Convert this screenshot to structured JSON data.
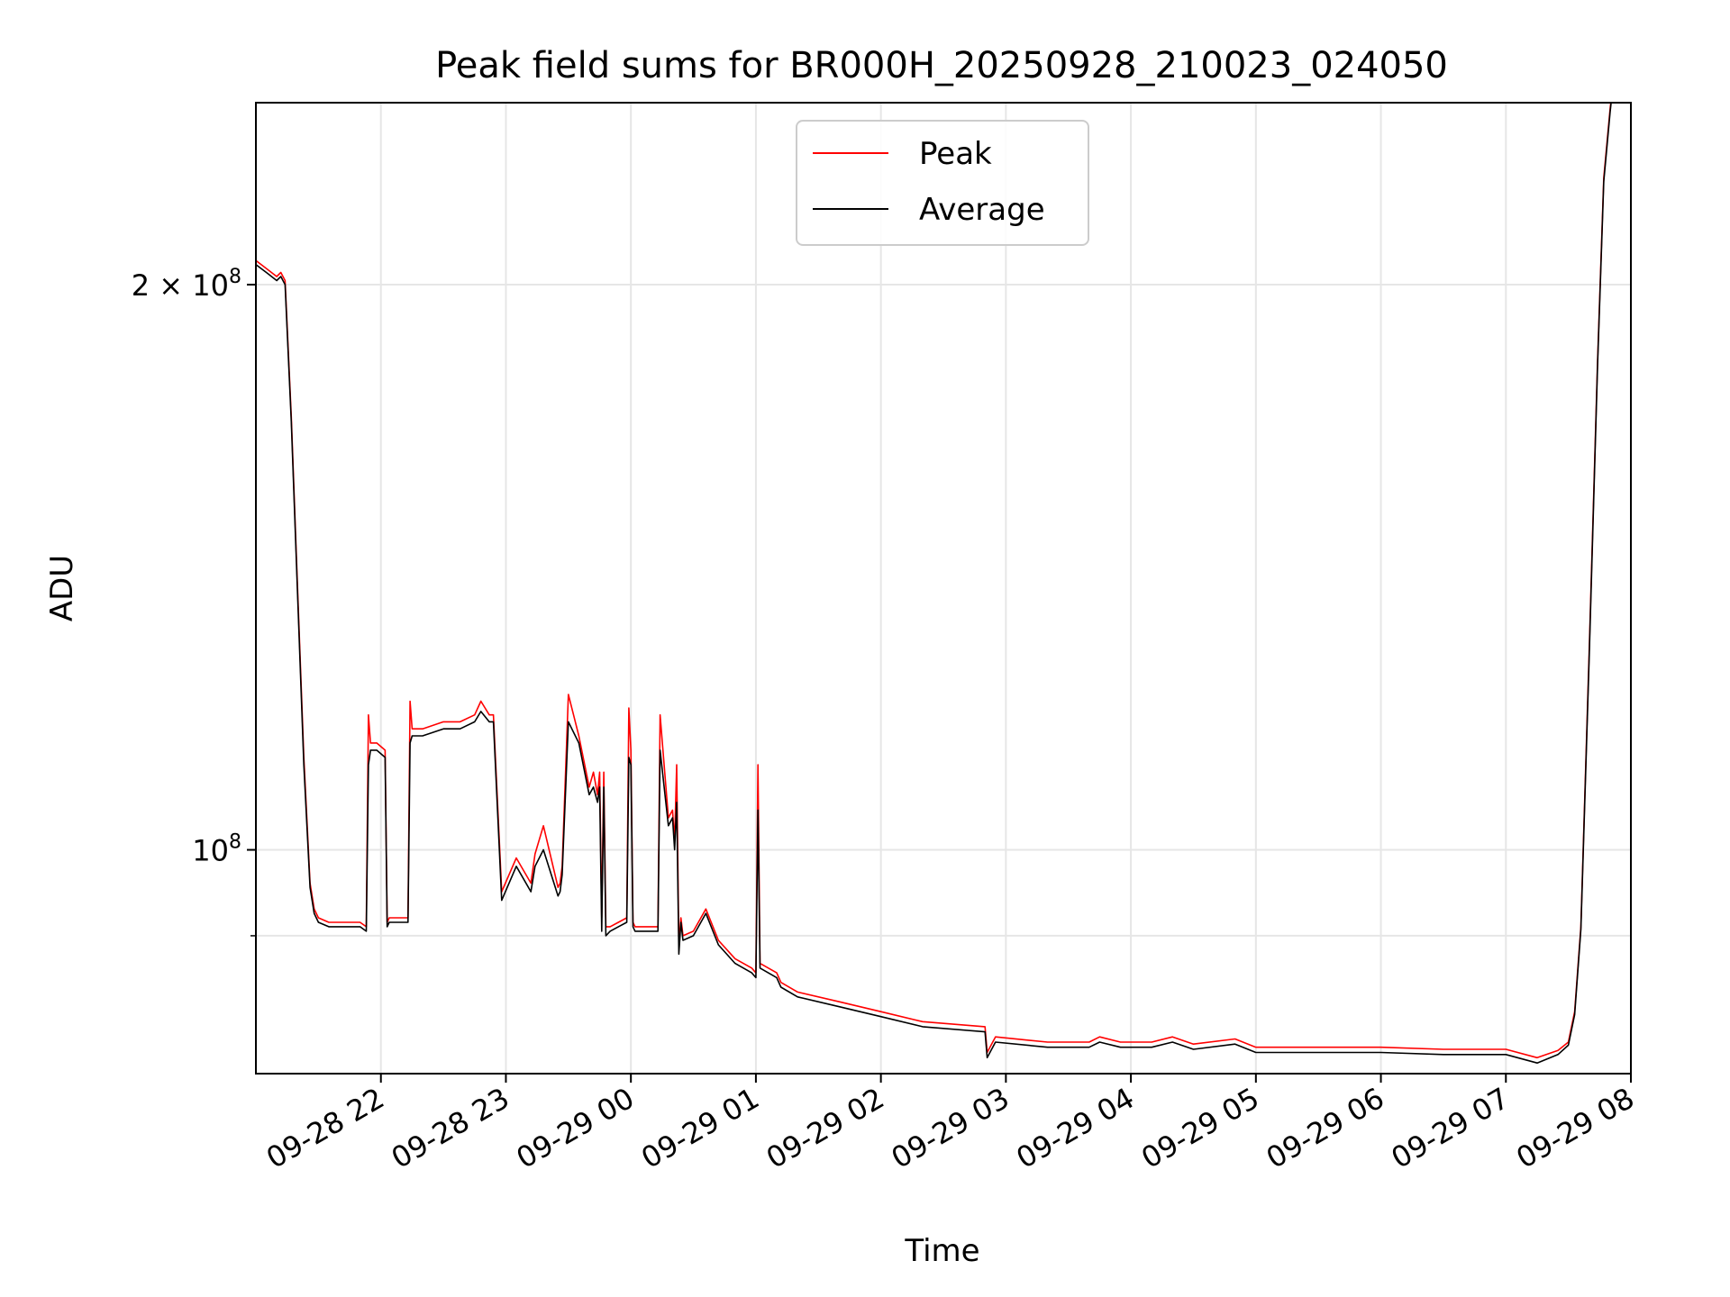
{
  "chart_data": {
    "type": "line",
    "title": "Peak field sums for BR000H_20250928_210023_024050",
    "xlabel": "Time",
    "ylabel": "ADU",
    "y_scale": "log",
    "ylim": [
      76000000,
      250000000
    ],
    "xlim": [
      "2025-09-28 21:00",
      "2025-09-29 08:00"
    ],
    "x_ticks": [
      "09-28 22",
      "09-28 23",
      "09-29 00",
      "09-29 01",
      "09-29 02",
      "09-29 03",
      "09-29 04",
      "09-29 05",
      "09-29 06",
      "09-29 07",
      "09-29 08"
    ],
    "y_ticks": [
      {
        "label_base": "10",
        "label_exp": "8",
        "value": 100000000
      },
      {
        "label_base": "2 × 10",
        "label_exp": "8",
        "value": 200000000
      }
    ],
    "grid": true,
    "legend": {
      "placement": "top-center",
      "entries": [
        "Peak",
        "Average"
      ]
    },
    "colors": {
      "Peak": "#ff0000",
      "Average": "#000000"
    },
    "series": [
      {
        "name": "Peak",
        "x": [
          "2025-09-28 21:00",
          "2025-09-28 21:05",
          "2025-09-28 21:10",
          "2025-09-28 21:12",
          "2025-09-28 21:14",
          "2025-09-28 21:17",
          "2025-09-28 21:20",
          "2025-09-28 21:23",
          "2025-09-28 21:26",
          "2025-09-28 21:28",
          "2025-09-28 21:30",
          "2025-09-28 21:35",
          "2025-09-28 21:40",
          "2025-09-28 21:50",
          "2025-09-28 21:53",
          "2025-09-28 21:54",
          "2025-09-28 21:55",
          "2025-09-28 21:58",
          "2025-09-28 22:02",
          "2025-09-28 22:03",
          "2025-09-28 22:04",
          "2025-09-28 22:10",
          "2025-09-28 22:13",
          "2025-09-28 22:14",
          "2025-09-28 22:15",
          "2025-09-28 22:20",
          "2025-09-28 22:30",
          "2025-09-28 22:38",
          "2025-09-28 22:45",
          "2025-09-28 22:48",
          "2025-09-28 22:52",
          "2025-09-28 22:54",
          "2025-09-28 22:58",
          "2025-09-28 23:05",
          "2025-09-28 23:12",
          "2025-09-28 23:14",
          "2025-09-28 23:18",
          "2025-09-28 23:25",
          "2025-09-28 23:26",
          "2025-09-28 23:27",
          "2025-09-28 23:30",
          "2025-09-28 23:35",
          "2025-09-28 23:40",
          "2025-09-28 23:42",
          "2025-09-28 23:44",
          "2025-09-28 23:45",
          "2025-09-28 23:46",
          "2025-09-28 23:47",
          "2025-09-28 23:48",
          "2025-09-28 23:50",
          "2025-09-28 23:54",
          "2025-09-28 23:58",
          "2025-09-28 23:59",
          "2025-09-29 00:00",
          "2025-09-29 00:01",
          "2025-09-29 00:02",
          "2025-09-29 00:03",
          "2025-09-29 00:06",
          "2025-09-29 00:10",
          "2025-09-29 00:13",
          "2025-09-29 00:14",
          "2025-09-29 00:18",
          "2025-09-29 00:20",
          "2025-09-29 00:21",
          "2025-09-29 00:22",
          "2025-09-29 00:23",
          "2025-09-29 00:24",
          "2025-09-29 00:25",
          "2025-09-29 00:30",
          "2025-09-29 00:36",
          "2025-09-29 00:42",
          "2025-09-29 00:50",
          "2025-09-29 00:58",
          "2025-09-29 01:00",
          "2025-09-29 01:01",
          "2025-09-29 01:02",
          "2025-09-29 01:10",
          "2025-09-29 01:12",
          "2025-09-29 01:20",
          "2025-09-29 01:40",
          "2025-09-29 02:00",
          "2025-09-29 02:20",
          "2025-09-29 02:50",
          "2025-09-29 02:51",
          "2025-09-29 02:55",
          "2025-09-29 03:20",
          "2025-09-29 03:40",
          "2025-09-29 03:45",
          "2025-09-29 03:55",
          "2025-09-29 04:10",
          "2025-09-29 04:20",
          "2025-09-29 04:30",
          "2025-09-29 04:50",
          "2025-09-29 05:00",
          "2025-09-29 05:30",
          "2025-09-29 06:00",
          "2025-09-29 06:30",
          "2025-09-29 07:00",
          "2025-09-29 07:15",
          "2025-09-29 07:25",
          "2025-09-29 07:30",
          "2025-09-29 07:33",
          "2025-09-29 07:36",
          "2025-09-29 07:40",
          "2025-09-29 07:44",
          "2025-09-29 07:47",
          "2025-09-29 07:50",
          "2025-09-29 07:52"
        ],
        "values": [
          206000000,
          204000000,
          202000000,
          203000000,
          201000000,
          170000000,
          138000000,
          112000000,
          96000000,
          93000000,
          92000000,
          91500000,
          91500000,
          91500000,
          91000000,
          118000000,
          114000000,
          114000000,
          113000000,
          91500000,
          92000000,
          92000000,
          92000000,
          120000000,
          116000000,
          116000000,
          117000000,
          117000000,
          118000000,
          120000000,
          118000000,
          118000000,
          95000000,
          99000000,
          96000000,
          99500000,
          103000000,
          95500000,
          96000000,
          98000000,
          121000000,
          115000000,
          108000000,
          110000000,
          107000000,
          110000000,
          92000000,
          110000000,
          91000000,
          91000000,
          91500000,
          92000000,
          119000000,
          113000000,
          91500000,
          91000000,
          91000000,
          91000000,
          91000000,
          91000000,
          118000000,
          104000000,
          105000000,
          101000000,
          111000000,
          89000000,
          92000000,
          90000000,
          90500000,
          93000000,
          89500000,
          87500000,
          86500000,
          86000000,
          111000000,
          87000000,
          86000000,
          85000000,
          84000000,
          83000000,
          82000000,
          81000000,
          80500000,
          78000000,
          79500000,
          79000000,
          79000000,
          79500000,
          79000000,
          79000000,
          79500000,
          78800000,
          79300000,
          78500000,
          78500000,
          78500000,
          78300000,
          78300000,
          77500000,
          78200000,
          79000000,
          82000000,
          91000000,
          128000000,
          182000000,
          228000000,
          248000000,
          260000000
        ]
      },
      {
        "name": "Average",
        "x": [
          "2025-09-28 21:00",
          "2025-09-28 21:05",
          "2025-09-28 21:10",
          "2025-09-28 21:12",
          "2025-09-28 21:14",
          "2025-09-28 21:17",
          "2025-09-28 21:20",
          "2025-09-28 21:23",
          "2025-09-28 21:26",
          "2025-09-28 21:28",
          "2025-09-28 21:30",
          "2025-09-28 21:35",
          "2025-09-28 21:40",
          "2025-09-28 21:50",
          "2025-09-28 21:53",
          "2025-09-28 21:54",
          "2025-09-28 21:55",
          "2025-09-28 21:58",
          "2025-09-28 22:02",
          "2025-09-28 22:03",
          "2025-09-28 22:04",
          "2025-09-28 22:10",
          "2025-09-28 22:13",
          "2025-09-28 22:14",
          "2025-09-28 22:15",
          "2025-09-28 22:20",
          "2025-09-28 22:30",
          "2025-09-28 22:38",
          "2025-09-28 22:45",
          "2025-09-28 22:48",
          "2025-09-28 22:52",
          "2025-09-28 22:54",
          "2025-09-28 22:58",
          "2025-09-28 23:05",
          "2025-09-28 23:12",
          "2025-09-28 23:14",
          "2025-09-28 23:18",
          "2025-09-28 23:25",
          "2025-09-28 23:26",
          "2025-09-28 23:27",
          "2025-09-28 23:30",
          "2025-09-28 23:35",
          "2025-09-28 23:40",
          "2025-09-28 23:42",
          "2025-09-28 23:44",
          "2025-09-28 23:45",
          "2025-09-28 23:46",
          "2025-09-28 23:47",
          "2025-09-28 23:48",
          "2025-09-28 23:50",
          "2025-09-28 23:54",
          "2025-09-28 23:58",
          "2025-09-28 23:59",
          "2025-09-29 00:00",
          "2025-09-29 00:01",
          "2025-09-29 00:02",
          "2025-09-29 00:03",
          "2025-09-29 00:06",
          "2025-09-29 00:10",
          "2025-09-29 00:13",
          "2025-09-29 00:14",
          "2025-09-29 00:18",
          "2025-09-29 00:20",
          "2025-09-29 00:21",
          "2025-09-29 00:22",
          "2025-09-29 00:23",
          "2025-09-29 00:24",
          "2025-09-29 00:25",
          "2025-09-29 00:30",
          "2025-09-29 00:36",
          "2025-09-29 00:42",
          "2025-09-29 00:50",
          "2025-09-29 00:58",
          "2025-09-29 01:00",
          "2025-09-29 01:01",
          "2025-09-29 01:02",
          "2025-09-29 01:10",
          "2025-09-29 01:12",
          "2025-09-29 01:20",
          "2025-09-29 01:40",
          "2025-09-29 02:00",
          "2025-09-29 02:20",
          "2025-09-29 02:50",
          "2025-09-29 02:51",
          "2025-09-29 02:55",
          "2025-09-29 03:20",
          "2025-09-29 03:40",
          "2025-09-29 03:45",
          "2025-09-29 03:55",
          "2025-09-29 04:10",
          "2025-09-29 04:20",
          "2025-09-29 04:30",
          "2025-09-29 04:50",
          "2025-09-29 05:00",
          "2025-09-29 05:30",
          "2025-09-29 06:00",
          "2025-09-29 06:30",
          "2025-09-29 07:00",
          "2025-09-29 07:15",
          "2025-09-29 07:25",
          "2025-09-29 07:30",
          "2025-09-29 07:33",
          "2025-09-29 07:36",
          "2025-09-29 07:40",
          "2025-09-29 07:44",
          "2025-09-29 07:47",
          "2025-09-29 07:50",
          "2025-09-29 07:52"
        ],
        "values": [
          205000000,
          203000000,
          201000000,
          202000000,
          200000000,
          169000000,
          137000000,
          111000000,
          95500000,
          92500000,
          91500000,
          91000000,
          91000000,
          91000000,
          90500000,
          111000000,
          113000000,
          113000000,
          112000000,
          91000000,
          91500000,
          91500000,
          91500000,
          114000000,
          115000000,
          115000000,
          116000000,
          116000000,
          117000000,
          118500000,
          117000000,
          117000000,
          94000000,
          98000000,
          95000000,
          98000000,
          100000000,
          94500000,
          95000000,
          97000000,
          117000000,
          114000000,
          107000000,
          108000000,
          106000000,
          108000000,
          90500000,
          108000000,
          90000000,
          90500000,
          91000000,
          91500000,
          112000000,
          111000000,
          91000000,
          90500000,
          90500000,
          90500000,
          90500000,
          90500000,
          113000000,
          103000000,
          104000000,
          100000000,
          106000000,
          88000000,
          91500000,
          89500000,
          90000000,
          92500000,
          89000000,
          87000000,
          86000000,
          85500000,
          105000000,
          86500000,
          85500000,
          84500000,
          83500000,
          82500000,
          81500000,
          80500000,
          80000000,
          77500000,
          79000000,
          78500000,
          78500000,
          79000000,
          78500000,
          78500000,
          79000000,
          78300000,
          78800000,
          78000000,
          78000000,
          78000000,
          77800000,
          77800000,
          77000000,
          77800000,
          78700000,
          81700000,
          90700000,
          127000000,
          181000000,
          227000000,
          247000000,
          259000000
        ]
      }
    ]
  }
}
